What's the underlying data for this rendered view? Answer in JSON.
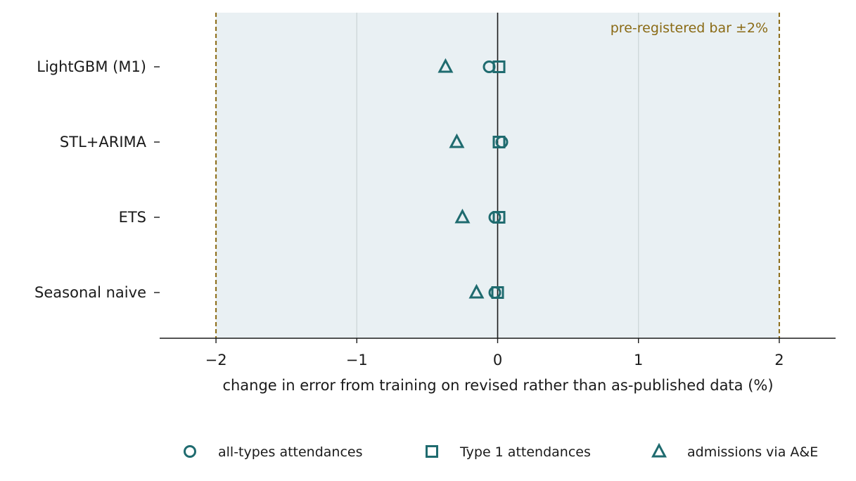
{
  "chart_data": {
    "type": "scatter",
    "orientation": "horizontal-dot",
    "categories": [
      "LightGBM (M1)",
      "STL+ARIMA",
      "ETS",
      "Seasonal naive"
    ],
    "x_ticks": [
      -2,
      -1,
      0,
      1,
      2
    ],
    "x_tick_labels": [
      "−2",
      "−1",
      "0",
      "1",
      "2"
    ],
    "xlim": [
      -2.4,
      2.4
    ],
    "xlabel": "change in error from training on revised rather than as-published data (%)",
    "ylabel": "",
    "grid": "vertical",
    "band": {
      "from": -2,
      "to": 2,
      "label": "pre-registered bar ±2%",
      "label_color": "#8a6a14",
      "line_color": "#8a6a14",
      "fill": "#e9f0f3"
    },
    "legend_position": "bottom",
    "marker_color": "#1f6b6f",
    "series": [
      {
        "name": "all-types attendances",
        "marker": "circle",
        "values": [
          -0.06,
          0.03,
          -0.02,
          -0.02
        ]
      },
      {
        "name": "Type 1 attendances",
        "marker": "square",
        "values": [
          0.01,
          0.01,
          0.01,
          0.0
        ]
      },
      {
        "name": "admissions via A&E",
        "marker": "triangle",
        "values": [
          -0.37,
          -0.29,
          -0.25,
          -0.15
        ]
      }
    ]
  }
}
